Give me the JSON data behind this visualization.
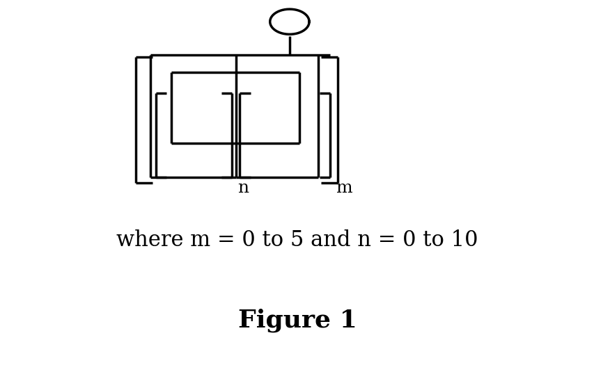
{
  "background_color": "#ffffff",
  "line_color": "#000000",
  "line_width": 2.5,
  "text_color": "#000000",
  "where_text": "where m = 0 to 5 and n = 0 to 10",
  "where_fontsize": 22,
  "figure_text": "Figure 1",
  "figure_fontsize": 26,
  "figsize": [
    8.54,
    5.48
  ],
  "dpi": 100
}
